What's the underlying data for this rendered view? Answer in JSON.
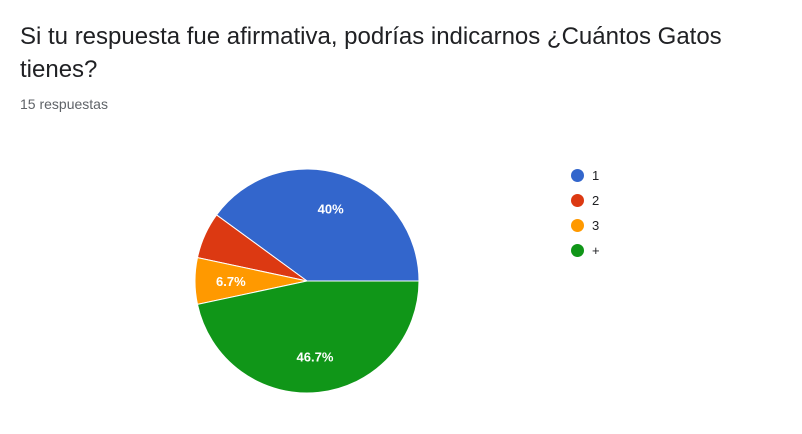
{
  "question": {
    "title": "Si tu respuesta fue afirmativa, podrías indicarnos ¿Cuántos Gatos tienes?",
    "response_count": "15 respuestas"
  },
  "chart_data": {
    "type": "pie",
    "categories": [
      "1",
      "2",
      "3",
      "+"
    ],
    "values": [
      40,
      6.7,
      6.7,
      46.7
    ],
    "labels": [
      "40%",
      "",
      "6.7%",
      "46.7%"
    ],
    "colors": [
      "#3366cc",
      "#dc3912",
      "#ff9900",
      "#109618"
    ],
    "legend": {
      "position": "right",
      "entries": [
        "1",
        "2",
        "3",
        "+"
      ]
    }
  }
}
